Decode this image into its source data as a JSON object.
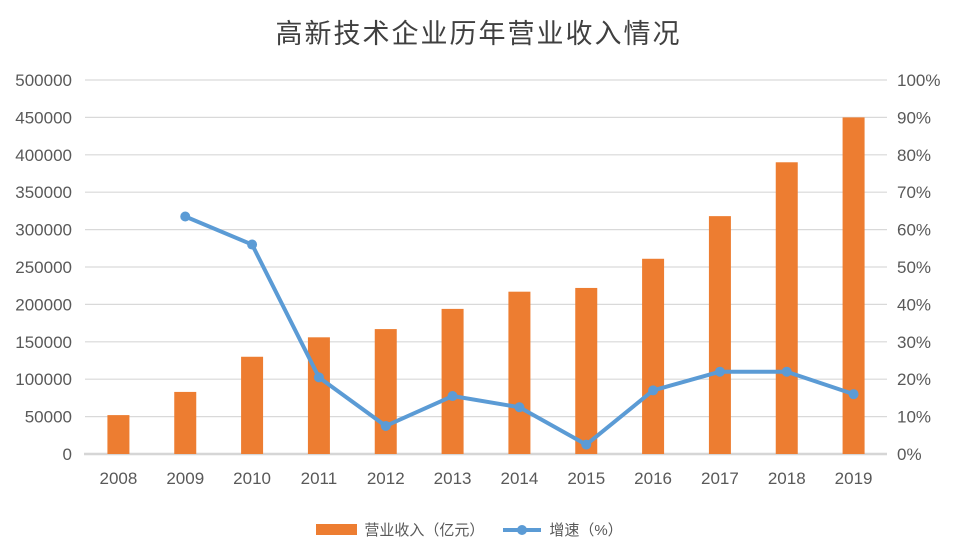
{
  "chart_data": {
    "type": "bar+line",
    "title": "高新技术企业历年营业收入情况",
    "categories": [
      "2008",
      "2009",
      "2010",
      "2011",
      "2012",
      "2013",
      "2014",
      "2015",
      "2016",
      "2017",
      "2018",
      "2019"
    ],
    "series": [
      {
        "name": "营业收入（亿元）",
        "type": "bar",
        "axis": "left",
        "color": "#ED7D31",
        "values": [
          52000,
          83000,
          130000,
          156000,
          167000,
          194000,
          217000,
          222000,
          261000,
          318000,
          390000,
          450000
        ]
      },
      {
        "name": "增速（%）",
        "type": "line",
        "axis": "right",
        "color": "#5B9BD5",
        "values": [
          null,
          63.5,
          56,
          20.5,
          7.5,
          15.5,
          12.5,
          2.5,
          17,
          22,
          22,
          16
        ]
      }
    ],
    "left_axis": {
      "min": 0,
      "max": 500000,
      "step": 50000,
      "tick_labels": [
        "0",
        "50000",
        "100000",
        "150000",
        "200000",
        "250000",
        "300000",
        "350000",
        "400000",
        "450000",
        "500000"
      ]
    },
    "right_axis": {
      "min": 0,
      "max": 100,
      "step": 10,
      "tick_labels": [
        "0%",
        "10%",
        "20%",
        "30%",
        "40%",
        "50%",
        "60%",
        "70%",
        "80%",
        "90%",
        "100%"
      ]
    },
    "grid": true,
    "legend_position": "bottom",
    "styles": {
      "grid_color": "#D9D9D9",
      "axis_line_color": "#D6D6D6",
      "tick_text_color": "#595959",
      "title_color": "#404040",
      "background": "#FFFFFF"
    }
  }
}
